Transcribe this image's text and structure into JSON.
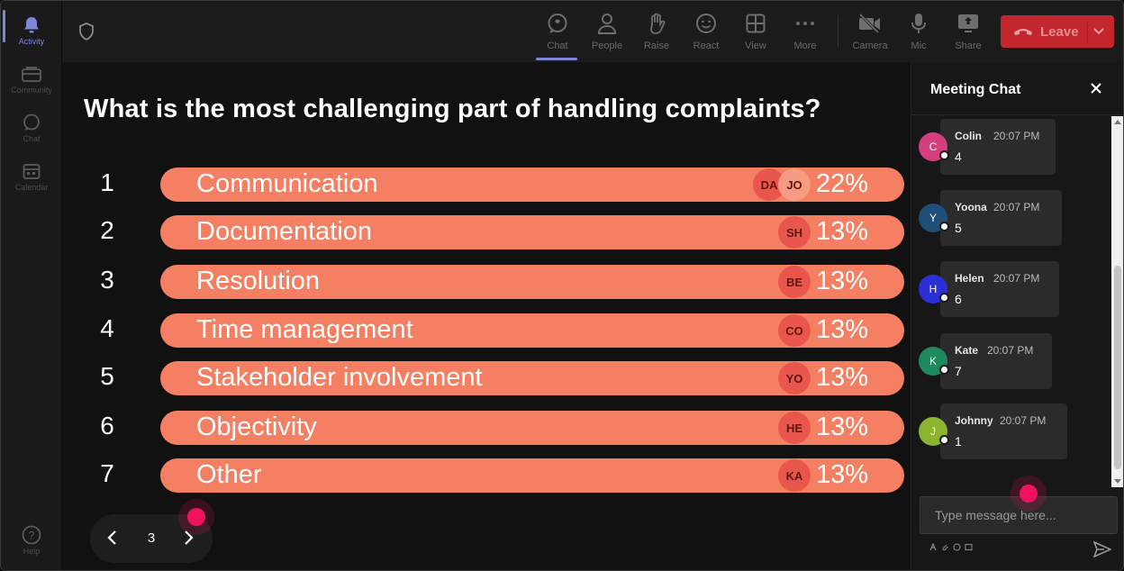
{
  "rail": {
    "items": [
      {
        "label": "Activity",
        "icon": "bell-icon",
        "active": true
      },
      {
        "label": "Community",
        "icon": "community-icon"
      },
      {
        "label": "Chat",
        "icon": "chat-bubble-icon"
      },
      {
        "label": "Calendar",
        "icon": "calendar-icon"
      }
    ],
    "help": "Help"
  },
  "toolbar": {
    "items": [
      {
        "label": "Chat",
        "icon": "chat-bubble-icon",
        "active": true
      },
      {
        "label": "People",
        "icon": "people-icon"
      },
      {
        "label": "Raise",
        "icon": "hand-icon"
      },
      {
        "label": "React",
        "icon": "smiley-icon"
      },
      {
        "label": "View",
        "icon": "grid-icon"
      },
      {
        "label": "More",
        "icon": "more-dots-icon"
      },
      {
        "label": "Camera",
        "icon": "camera-off-icon"
      },
      {
        "label": "Mic",
        "icon": "microphone-icon"
      },
      {
        "label": "Share",
        "icon": "share-screen-icon"
      }
    ],
    "leave_label": "Leave"
  },
  "poll": {
    "question": "What is the most challenging part of handling complaints?",
    "options": [
      {
        "num": "1",
        "label": "Communication",
        "pct": "22%",
        "avatars": [
          "DA",
          "JO"
        ]
      },
      {
        "num": "2",
        "label": "Documentation",
        "pct": "13%",
        "avatars": [
          "SH"
        ]
      },
      {
        "num": "3",
        "label": "Resolution",
        "pct": "13%",
        "avatars": [
          "BE"
        ]
      },
      {
        "num": "4",
        "label": "Time management",
        "pct": "13%",
        "avatars": [
          "CO"
        ]
      },
      {
        "num": "5",
        "label": "Stakeholder involvement",
        "pct": "13%",
        "avatars": [
          "YO"
        ]
      },
      {
        "num": "6",
        "label": "Objectivity",
        "pct": "13%",
        "avatars": [
          "HE"
        ]
      },
      {
        "num": "7",
        "label": "Other",
        "pct": "13%",
        "avatars": [
          "KA"
        ]
      }
    ],
    "page": "3"
  },
  "chat": {
    "title": "Meeting Chat",
    "messages": [
      {
        "initial": "C",
        "name": "Colin",
        "time": "20:07 PM",
        "text": "4",
        "color": "#d63f7e"
      },
      {
        "initial": "Y",
        "name": "Yoona",
        "time": "20:07 PM",
        "text": "5",
        "color": "#1f4e79"
      },
      {
        "initial": "H",
        "name": "Helen",
        "time": "20:07 PM",
        "text": "6",
        "color": "#2b2fd6"
      },
      {
        "initial": "K",
        "name": "Kate",
        "time": "20:07 PM",
        "text": "7",
        "color": "#1e8a5e"
      },
      {
        "initial": "J",
        "name": "Johnny",
        "time": "20:07 PM",
        "text": "1",
        "color": "#8bb52f"
      }
    ],
    "input_placeholder": "Type message here..."
  },
  "colors": {
    "accent": "#7d86d9",
    "bar": "#f47f62",
    "leave": "#c4262e",
    "cursor": "#f0125f"
  }
}
